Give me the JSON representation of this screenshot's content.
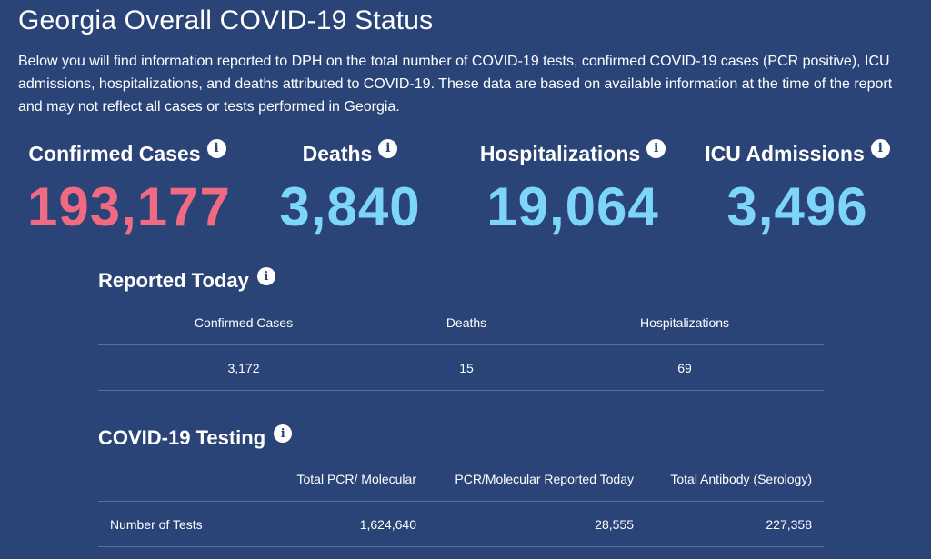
{
  "page": {
    "title": "Georgia Overall COVID-19 Status",
    "intro": "Below you will find information reported to DPH on the total number of COVID-19 tests, confirmed COVID-19 cases (PCR positive), ICU admissions, hospitalizations, and deaths attributed to COVID-19. These data are based on available information at the time of the report and may not reflect all cases or tests performed in Georgia."
  },
  "stats": [
    {
      "label": "Confirmed Cases",
      "value": "193,177",
      "color": "#f06b82"
    },
    {
      "label": "Deaths",
      "value": "3,840",
      "color": "#7dd6f9"
    },
    {
      "label": "Hospitalizations",
      "value": "19,064",
      "color": "#7dd6f9"
    },
    {
      "label": "ICU Admissions",
      "value": "3,496",
      "color": "#7dd6f9"
    }
  ],
  "info_icon": {
    "glyph": "i",
    "icon": "info-icon"
  },
  "reported_today": {
    "title": "Reported Today",
    "headers": [
      "Confirmed Cases",
      "Deaths",
      "Hospitalizations"
    ],
    "values": [
      "3,172",
      "15",
      "69"
    ]
  },
  "testing": {
    "title": "COVID-19 Testing",
    "headers": [
      "Total PCR/ Molecular",
      "PCR/Molecular Reported Today",
      "Total Antibody (Serology)"
    ],
    "row_label": "Number of Tests",
    "values": [
      "1,624,640",
      "28,555",
      "227,358"
    ]
  },
  "colors": {
    "background": "#2b4478",
    "accent_pink": "#f06b82",
    "accent_blue": "#7dd6f9"
  }
}
